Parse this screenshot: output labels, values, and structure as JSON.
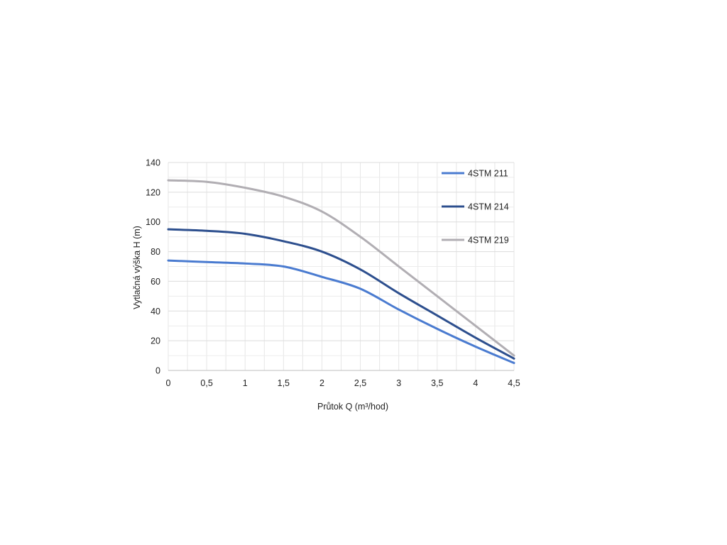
{
  "chart_data": {
    "type": "line",
    "title": "",
    "xlabel": "Průtok Q (m³/hod)",
    "ylabel": "Vytlačná výška H (m)",
    "xlim": [
      0,
      4.5
    ],
    "ylim": [
      0,
      140
    ],
    "x_ticks": [
      0,
      0.5,
      1,
      1.5,
      2,
      2.5,
      3,
      3.5,
      4,
      4.5
    ],
    "x_tick_labels": [
      "0",
      "0,5",
      "1",
      "1,5",
      "2",
      "2,5",
      "3",
      "3,5",
      "4",
      "4,5"
    ],
    "y_ticks": [
      0,
      20,
      40,
      60,
      80,
      100,
      120,
      140
    ],
    "y_tick_labels": [
      "0",
      "20",
      "40",
      "60",
      "80",
      "100",
      "120",
      "140"
    ],
    "grid": true,
    "legend_position": "top-right",
    "series": [
      {
        "name": "4STM 211",
        "color": "#4a7bd0",
        "points": [
          [
            0,
            74
          ],
          [
            0.5,
            73
          ],
          [
            1,
            72
          ],
          [
            1.5,
            70
          ],
          [
            2,
            63
          ],
          [
            2.5,
            55
          ],
          [
            3,
            41
          ],
          [
            3.5,
            28
          ],
          [
            4,
            16
          ],
          [
            4.5,
            5
          ]
        ]
      },
      {
        "name": "4STM 214",
        "color": "#2d4f8e",
        "points": [
          [
            0,
            95
          ],
          [
            0.5,
            94
          ],
          [
            1,
            92
          ],
          [
            1.5,
            87
          ],
          [
            2,
            80
          ],
          [
            2.5,
            68
          ],
          [
            3,
            52
          ],
          [
            3.5,
            37
          ],
          [
            4,
            22
          ],
          [
            4.5,
            8
          ]
        ]
      },
      {
        "name": "4STM 219",
        "color": "#b1aeb3",
        "points": [
          [
            0,
            128
          ],
          [
            0.5,
            127
          ],
          [
            1,
            123
          ],
          [
            1.5,
            117
          ],
          [
            2,
            107
          ],
          [
            2.5,
            90
          ],
          [
            3,
            70
          ],
          [
            3.5,
            50
          ],
          [
            4,
            30
          ],
          [
            4.5,
            10
          ]
        ]
      }
    ]
  }
}
